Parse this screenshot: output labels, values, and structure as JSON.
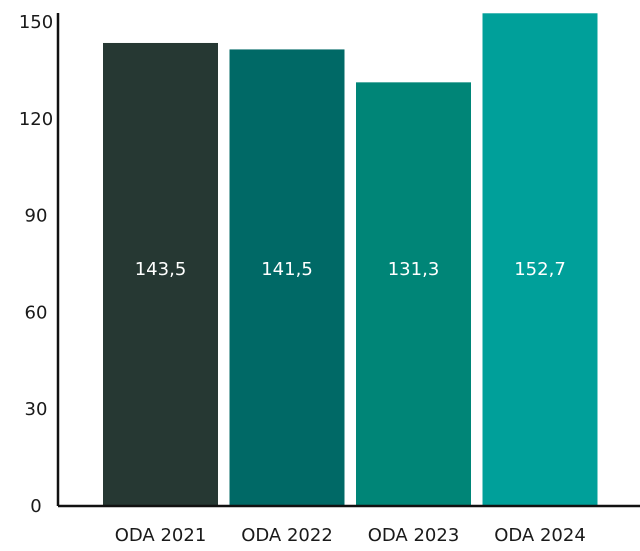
{
  "chart_data": {
    "type": "bar",
    "title": "",
    "xlabel": "",
    "ylabel": "",
    "categories": [
      "ODA 2021",
      "ODA 2022",
      "ODA 2023",
      "ODA 2024"
    ],
    "values": [
      143.5,
      141.5,
      131.3,
      152.7
    ],
    "value_labels": [
      "143,5",
      "141,5",
      "131,3",
      "152,7"
    ],
    "bar_colors": [
      "#263833",
      "#006966",
      "#008577",
      "#00a09a"
    ],
    "ylim": [
      0,
      150
    ],
    "yticks": [
      0,
      30,
      60,
      90,
      120,
      150
    ],
    "ytick_labels": [
      "0",
      "30",
      "60",
      "90",
      "120",
      "150"
    ],
    "grid": false,
    "legend": "none"
  }
}
